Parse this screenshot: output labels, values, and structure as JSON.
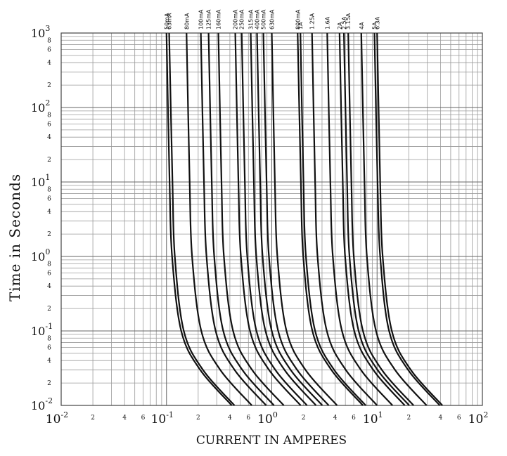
{
  "chart_data": {
    "type": "line",
    "ylabel": "Time in Seconds",
    "xlabel": "CURRENT IN AMPERES",
    "xlog": true,
    "ylog": true,
    "grid": true,
    "color": "#111111",
    "xlim": [
      0.01,
      100
    ],
    "ylim": [
      0.01,
      1000
    ],
    "xticks": [
      {
        "value": 0.01,
        "label": "10",
        "exponent": "-2"
      },
      {
        "value": 0.1,
        "label": "10",
        "exponent": "-1"
      },
      {
        "value": 1,
        "label": "10",
        "exponent": "0"
      },
      {
        "value": 10,
        "label": "10",
        "exponent": "1"
      },
      {
        "value": 100,
        "label": "10",
        "exponent": "2"
      }
    ],
    "yticks": [
      {
        "value": 0.01,
        "label": "10",
        "exponent": "-2"
      },
      {
        "value": 0.1,
        "label": "10",
        "exponent": "-1"
      },
      {
        "value": 1,
        "label": "10",
        "exponent": "0"
      },
      {
        "value": 10,
        "label": "10",
        "exponent": "1"
      },
      {
        "value": 100,
        "label": "10",
        "exponent": "2"
      },
      {
        "value": 1000,
        "label": "10",
        "exponent": "3"
      }
    ],
    "xminor_ticks": [
      {
        "value": 0.02,
        "label": "2"
      },
      {
        "value": 0.04,
        "label": "4"
      },
      {
        "value": 0.06,
        "label": "6"
      },
      {
        "value": 0.2,
        "label": "2"
      },
      {
        "value": 0.4,
        "label": "4"
      },
      {
        "value": 0.6,
        "label": "6"
      },
      {
        "value": 2,
        "label": "2"
      },
      {
        "value": 4,
        "label": "4"
      },
      {
        "value": 6,
        "label": "6"
      },
      {
        "value": 20,
        "label": "2"
      },
      {
        "value": 40,
        "label": "4"
      },
      {
        "value": 60,
        "label": "6"
      }
    ],
    "yminor_ticks": [
      {
        "value": 0.02,
        "label": "2"
      },
      {
        "value": 0.04,
        "label": "4"
      },
      {
        "value": 0.06,
        "label": "6"
      },
      {
        "value": 0.08,
        "label": "8"
      },
      {
        "value": 0.2,
        "label": "2"
      },
      {
        "value": 0.4,
        "label": "4"
      },
      {
        "value": 0.6,
        "label": "6"
      },
      {
        "value": 0.8,
        "label": "8"
      },
      {
        "value": 2,
        "label": "2"
      },
      {
        "value": 4,
        "label": "4"
      },
      {
        "value": 6,
        "label": "6"
      },
      {
        "value": 8,
        "label": "8"
      },
      {
        "value": 20,
        "label": "2"
      },
      {
        "value": 40,
        "label": "4"
      },
      {
        "value": 60,
        "label": "6"
      },
      {
        "value": 80,
        "label": "8"
      },
      {
        "value": 200,
        "label": "2"
      },
      {
        "value": 400,
        "label": "4"
      },
      {
        "value": 600,
        "label": "6"
      },
      {
        "value": 800,
        "label": "8"
      }
    ],
    "xgrid": [
      0.02,
      0.03,
      0.04,
      0.05,
      0.06,
      0.07,
      0.08,
      0.09,
      0.2,
      0.3,
      0.4,
      0.5,
      0.6,
      0.7,
      0.8,
      0.9,
      2,
      3,
      4,
      5,
      6,
      7,
      8,
      9,
      20,
      30,
      40,
      50,
      60,
      70,
      80,
      90
    ],
    "ygrid": [
      0.02,
      0.03,
      0.04,
      0.05,
      0.06,
      0.07,
      0.08,
      0.09,
      0.2,
      0.3,
      0.4,
      0.5,
      0.6,
      0.7,
      0.8,
      0.9,
      2,
      3,
      4,
      5,
      6,
      7,
      8,
      9,
      20,
      30,
      40,
      50,
      60,
      70,
      80,
      90,
      200,
      300,
      400,
      500,
      600,
      700,
      800,
      900
    ],
    "series": [
      {
        "name": "50mA",
        "x": [
          0.1,
          0.107,
          0.113,
          0.138,
          0.209,
          0.417
        ],
        "values": [
          1000,
          10,
          1,
          0.1,
          0.03,
          0.01
        ]
      },
      {
        "name": "63mA",
        "x": [
          0.106,
          0.114,
          0.12,
          0.146,
          0.222,
          0.442
        ],
        "values": [
          1000,
          10,
          1,
          0.1,
          0.03,
          0.01
        ]
      },
      {
        "name": "80mA",
        "x": [
          0.155,
          0.166,
          0.175,
          0.214,
          0.324,
          0.646
        ],
        "values": [
          1000,
          10,
          1,
          0.1,
          0.03,
          0.01
        ]
      },
      {
        "name": "100mA",
        "x": [
          0.212,
          0.227,
          0.24,
          0.293,
          0.443,
          0.884
        ],
        "values": [
          1000,
          10,
          1,
          0.1,
          0.03,
          0.01
        ]
      },
      {
        "name": "125mA",
        "x": [
          0.251,
          0.269,
          0.284,
          0.346,
          0.525,
          1.05
        ],
        "values": [
          1000,
          10,
          1,
          0.1,
          0.03,
          0.01
        ]
      },
      {
        "name": "160mA",
        "x": [
          0.311,
          0.333,
          0.351,
          0.429,
          0.65,
          1.3
        ],
        "values": [
          1000,
          10,
          1,
          0.1,
          0.03,
          0.01
        ]
      },
      {
        "name": "200mA",
        "x": [
          0.45,
          0.482,
          0.509,
          0.621,
          0.941,
          1.88
        ],
        "values": [
          1000,
          10,
          1,
          0.1,
          0.03,
          0.01
        ]
      },
      {
        "name": "250mA",
        "x": [
          0.518,
          0.555,
          0.585,
          0.715,
          1.08,
          2.16
        ],
        "values": [
          1000,
          10,
          1,
          0.1,
          0.03,
          0.01
        ]
      },
      {
        "name": "315mA",
        "x": [
          0.631,
          0.676,
          0.713,
          0.871,
          1.32,
          2.63
        ],
        "values": [
          1000,
          10,
          1,
          0.1,
          0.03,
          0.01
        ]
      },
      {
        "name": "400mA",
        "x": [
          0.724,
          0.776,
          0.818,
          0.999,
          1.51,
          3.02
        ],
        "values": [
          1000,
          10,
          1,
          0.1,
          0.03,
          0.01
        ]
      },
      {
        "name": "500mA",
        "x": [
          0.832,
          0.892,
          0.94,
          1.15,
          1.74,
          3.47
        ],
        "values": [
          1000,
          10,
          1,
          0.1,
          0.03,
          0.01
        ]
      },
      {
        "name": "630mA",
        "x": [
          1,
          1.07,
          1.13,
          1.38,
          2.09,
          4.17
        ],
        "values": [
          1000,
          10,
          1,
          0.1,
          0.03,
          0.01
        ]
      },
      {
        "name": "800mA",
        "x": [
          1.76,
          1.89,
          1.99,
          2.43,
          3.68,
          7.34
        ],
        "values": [
          1000,
          10,
          1,
          0.1,
          0.03,
          0.01
        ]
      },
      {
        "name": "1A",
        "x": [
          1.87,
          2,
          2.11,
          2.58,
          3.91,
          7.8
        ],
        "values": [
          1000,
          10,
          1,
          0.1,
          0.03,
          0.01
        ]
      },
      {
        "name": "1.25A",
        "x": [
          2.41,
          2.58,
          2.72,
          3.33,
          5.04,
          10
        ],
        "values": [
          1000,
          10,
          1,
          0.1,
          0.03,
          0.01
        ]
      },
      {
        "name": "1.6A",
        "x": [
          3.36,
          3.6,
          3.8,
          4.64,
          7.02,
          14
        ],
        "values": [
          1000,
          10,
          1,
          0.1,
          0.03,
          0.01
        ]
      },
      {
        "name": "2A",
        "x": [
          4.4,
          4.72,
          4.97,
          6.07,
          9.2,
          18.3
        ],
        "values": [
          1000,
          10,
          1,
          0.1,
          0.03,
          0.01
        ]
      },
      {
        "name": "2.5A",
        "x": [
          4.84,
          5.19,
          5.47,
          6.68,
          10.1,
          20.2
        ],
        "values": [
          1000,
          10,
          1,
          0.1,
          0.03,
          0.01
        ]
      },
      {
        "name": "3.15A",
        "x": [
          5.32,
          5.7,
          6.01,
          7.34,
          11.1,
          22.2
        ],
        "values": [
          1000,
          10,
          1,
          0.1,
          0.03,
          0.01
        ]
      },
      {
        "name": "4A",
        "x": [
          7.08,
          7.59,
          8,
          9.77,
          14.8,
          29.5
        ],
        "values": [
          1000,
          10,
          1,
          0.1,
          0.03,
          0.01
        ]
      },
      {
        "name": "5A",
        "x": [
          9.44,
          10.1,
          10.7,
          13,
          19.7,
          39.4
        ],
        "values": [
          1000,
          10,
          1,
          0.1,
          0.03,
          0.01
        ]
      },
      {
        "name": "6.3A",
        "x": [
          10,
          10.7,
          11.3,
          13.8,
          20.9,
          41.7
        ],
        "values": [
          1000,
          10,
          1,
          0.1,
          0.03,
          0.01
        ]
      }
    ]
  }
}
